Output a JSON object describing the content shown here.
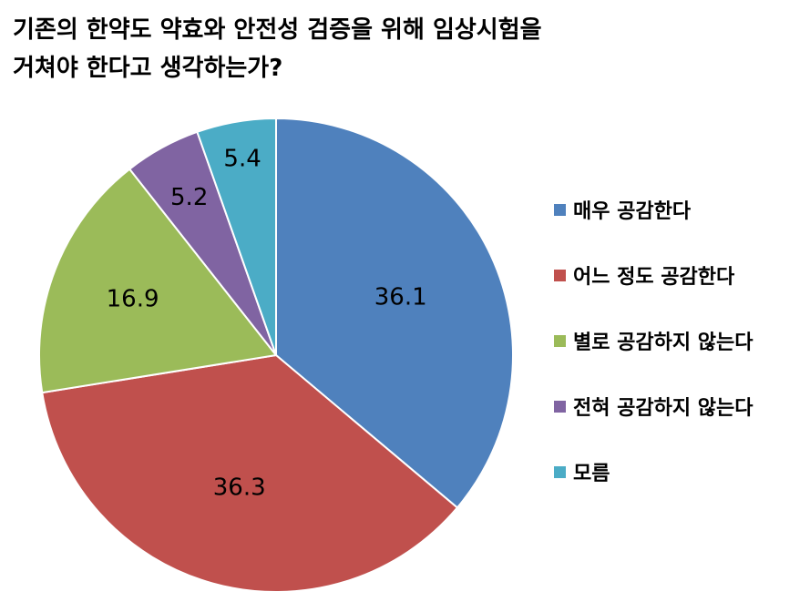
{
  "title": {
    "line1": "기존의 한약도 약효와 안전성 검증을 위해 임상시험을",
    "line2": "거쳐야 한다고 생각하는가?"
  },
  "chart_data": {
    "type": "pie",
    "title": "기존의 한약도 약효와 안전성 검증을 위해 임상시험을 거쳐야 한다고 생각하는가?",
    "categories": [
      "매우 공감한다",
      "어느 정도 공감한다",
      "별로 공감하지 않는다",
      "전혀 공감하지 않는다",
      "모름"
    ],
    "values": [
      36.1,
      36.3,
      16.9,
      5.2,
      5.4
    ],
    "value_labels": [
      "36.1",
      "36.3",
      "16.9",
      "5.2",
      "5.4"
    ],
    "colors": [
      "#4F81BD",
      "#C0504D",
      "#9BBB59",
      "#8064A2",
      "#4BACC6"
    ],
    "start_angle": "12 o'clock",
    "direction": "clockwise",
    "legend": "right"
  }
}
